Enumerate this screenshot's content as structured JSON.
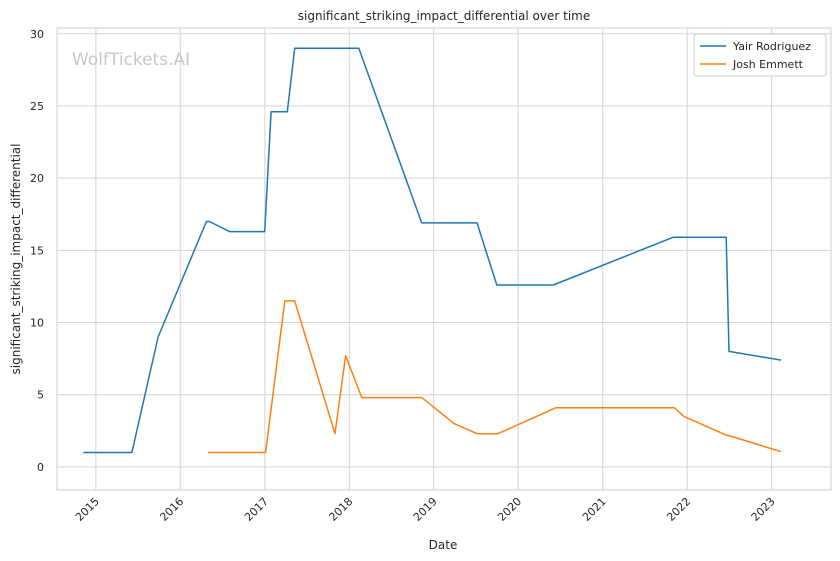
{
  "chart_data": {
    "type": "line",
    "title": "significant_striking_impact_differential over time",
    "xlabel": "Date",
    "ylabel": "significant_striking_impact_differential",
    "watermark": "WolfTickets.AI",
    "xlim": [
      "2014-07-17",
      "2023-09-15"
    ],
    "ylim": [
      -1.6,
      30.4
    ],
    "x_ticks": [
      "2015",
      "2016",
      "2017",
      "2018",
      "2019",
      "2020",
      "2021",
      "2022",
      "2023"
    ],
    "y_ticks": [
      "0",
      "5",
      "10",
      "15",
      "20",
      "25",
      "30"
    ],
    "grid": true,
    "legend_position": "top-right",
    "series": [
      {
        "name": "Yair Rodriguez",
        "color": "#1f77b4",
        "points": [
          [
            "2014-11-08",
            1.0
          ],
          [
            "2015-06-06",
            1.0
          ],
          [
            "2015-09-27",
            9.0
          ],
          [
            "2016-04-23",
            17.0
          ],
          [
            "2016-05-06",
            17.0
          ],
          [
            "2016-08-01",
            16.3
          ],
          [
            "2016-12-31",
            16.3
          ],
          [
            "2017-01-28",
            24.6
          ],
          [
            "2017-04-08",
            24.6
          ],
          [
            "2017-05-10",
            29.0
          ],
          [
            "2018-02-11",
            29.0
          ],
          [
            "2018-11-10",
            16.9
          ],
          [
            "2019-07-07",
            16.9
          ],
          [
            "2019-10-01",
            12.6
          ],
          [
            "2020-06-01",
            12.6
          ],
          [
            "2021-11-01",
            15.9
          ],
          [
            "2022-06-19",
            15.9
          ],
          [
            "2022-07-01",
            8.0
          ],
          [
            "2023-02-11",
            7.4
          ]
        ]
      },
      {
        "name": "Josh Emmett",
        "color": "#ff7f0e",
        "points": [
          [
            "2016-05-01",
            1.0
          ],
          [
            "2017-01-04",
            1.0
          ],
          [
            "2017-03-28",
            11.5
          ],
          [
            "2017-05-10",
            11.5
          ],
          [
            "2017-10-31",
            2.3
          ],
          [
            "2017-12-16",
            7.7
          ],
          [
            "2018-02-24",
            4.8
          ],
          [
            "2018-11-10",
            4.8
          ],
          [
            "2019-03-30",
            3.0
          ],
          [
            "2019-07-07",
            2.3
          ],
          [
            "2019-10-05",
            2.3
          ],
          [
            "2020-06-13",
            4.1
          ],
          [
            "2021-11-06",
            4.1
          ],
          [
            "2021-12-18",
            3.5
          ],
          [
            "2022-06-19",
            2.2
          ],
          [
            "2022-07-16",
            2.1
          ],
          [
            "2023-02-11",
            1.05
          ]
        ]
      }
    ]
  }
}
